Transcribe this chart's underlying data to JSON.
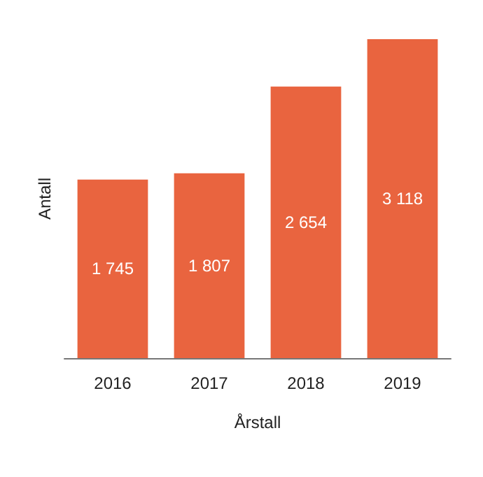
{
  "chart_data": {
    "type": "bar",
    "xlabel": "Årstall",
    "ylabel": "Antall",
    "categories": [
      "2016",
      "2017",
      "2018",
      "2019"
    ],
    "values": [
      1745,
      1807,
      2654,
      3118
    ],
    "color": "#e9643f",
    "value_labels": [
      "1 745",
      "1 807",
      "2 654",
      "3 118"
    ],
    "grid": false
  }
}
